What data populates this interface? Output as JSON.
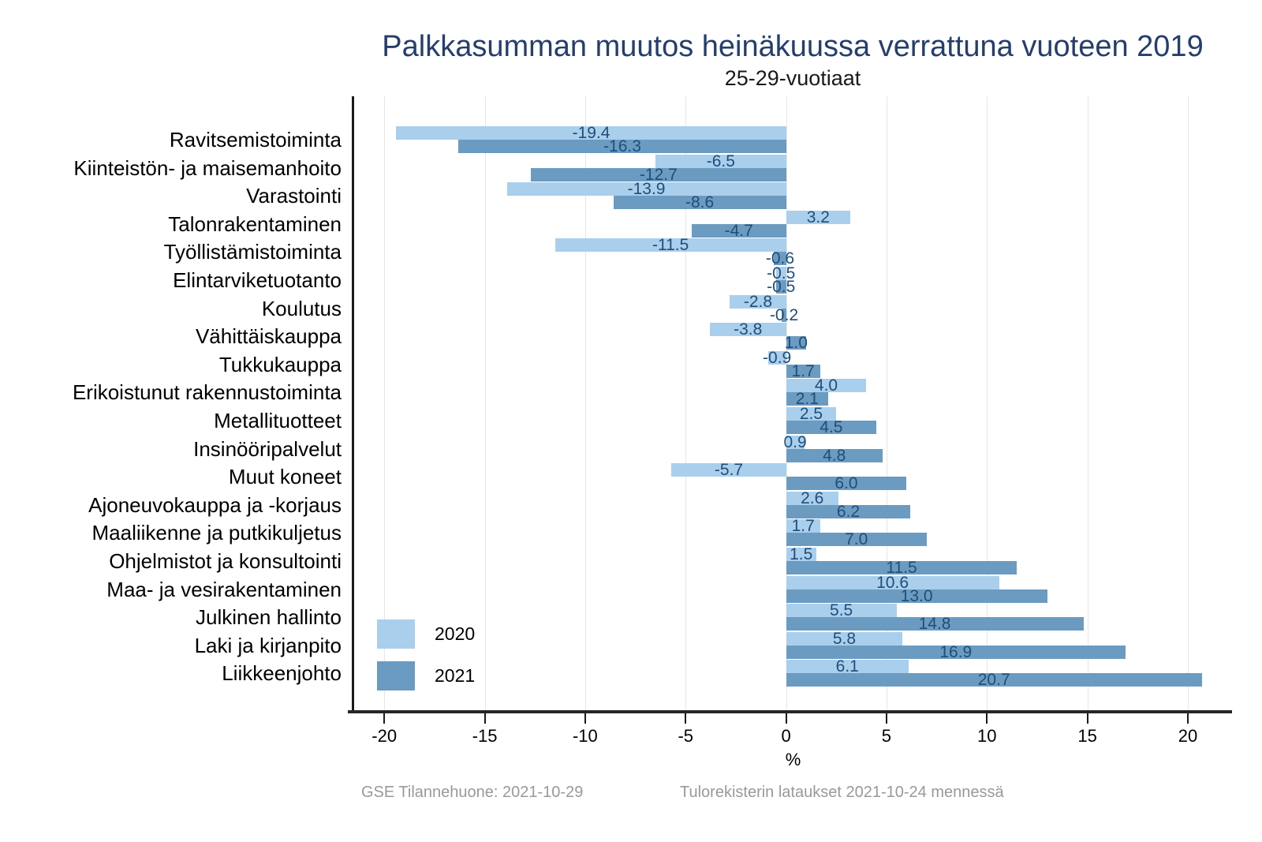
{
  "title": "Palkkasumman muutos heinäkuussa verrattuna vuoteen 2019",
  "subtitle": "25-29-vuotiaat",
  "footer": {
    "left": "GSE Tilannehuone: 2021-10-29",
    "right": "Tulorekisterin lataukset 2021-10-24 mennessä"
  },
  "legend": [
    {
      "label": "2020",
      "color": "#a9cfec"
    },
    {
      "label": "2021",
      "color": "#6b9bc0"
    }
  ],
  "colors": {
    "bar_2020": "#a9cfec",
    "bar_2021": "#6b9bc0",
    "value_label": "#1f4e79",
    "title": "#253e6d",
    "grid": "#e6e6e6",
    "axis": "#262626",
    "footer": "#999999"
  },
  "chart_data": {
    "type": "bar",
    "orientation": "horizontal",
    "title": "Palkkasumman muutos heinäkuussa verrattuna vuoteen 2019",
    "subtitle": "25-29-vuotiaat",
    "xlabel": "%",
    "ylabel": "",
    "x_ticks": [
      -20,
      -15,
      -10,
      -5,
      0,
      5,
      10,
      15,
      20
    ],
    "x_range": [
      -21.5,
      22.2
    ],
    "grid": true,
    "value_labels": true,
    "legend_position": "inside-bottom-left",
    "categories": [
      "Ravitsemistoiminta",
      "Kiinteistön- ja maisemanhoito",
      "Varastointi",
      "Talonrakentaminen",
      "Työllistämistoiminta",
      "Elintarviketuotanto",
      "Koulutus",
      "Vähittäiskauppa",
      "Tukkukauppa",
      "Erikoistunut rakennustoiminta",
      "Metallituotteet",
      "Insinööripalvelut",
      "Muut koneet",
      "Ajoneuvokauppa ja -korjaus",
      "Maaliikenne ja putkikuljetus",
      "Ohjelmistot ja konsultointi",
      "Maa- ja vesirakentaminen",
      "Julkinen hallinto",
      "Laki ja kirjanpito",
      "Liikkeenjohto"
    ],
    "series": [
      {
        "name": "2020",
        "color": "#a9cfec",
        "values": [
          -19.4,
          -6.5,
          -13.9,
          3.2,
          -11.5,
          -0.5,
          -2.8,
          -3.8,
          -0.9,
          4.0,
          2.5,
          0.9,
          -5.7,
          2.6,
          1.7,
          1.5,
          10.6,
          5.5,
          5.8,
          6.1
        ]
      },
      {
        "name": "2021",
        "color": "#6b9bc0",
        "values": [
          -16.3,
          -12.7,
          -8.6,
          -4.7,
          -0.6,
          -0.5,
          -0.2,
          1.0,
          1.7,
          2.1,
          4.5,
          4.8,
          6.0,
          6.2,
          7.0,
          11.5,
          13.0,
          14.8,
          16.9,
          20.7
        ]
      }
    ]
  }
}
